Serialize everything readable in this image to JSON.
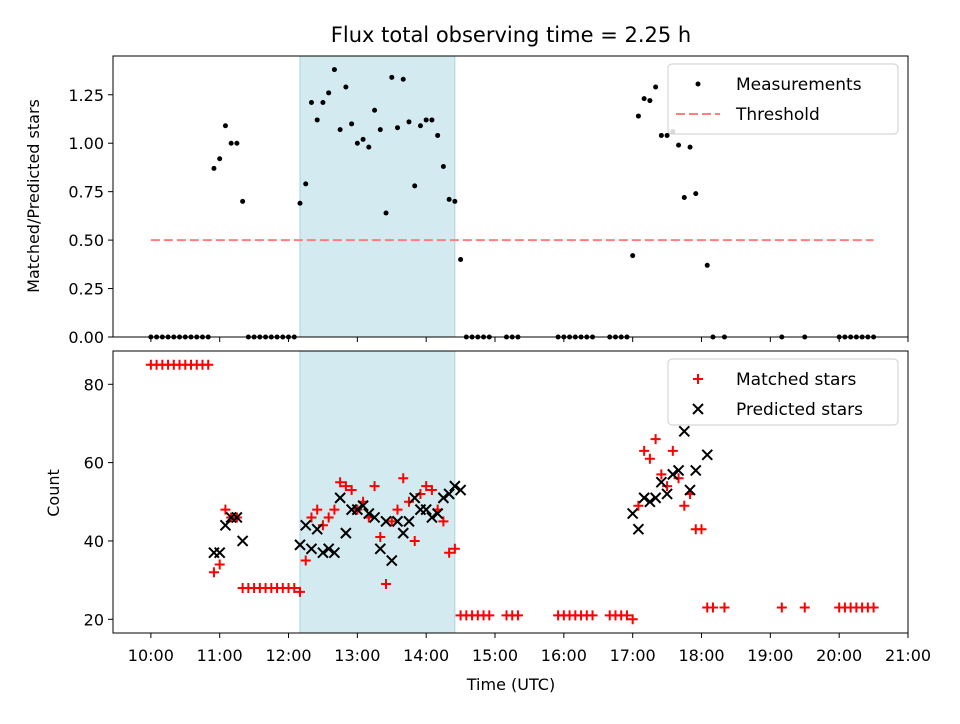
{
  "chart_data": [
    {
      "type": "scatter",
      "title": "Flux total observing time = 2.25 h",
      "ylabel": "Matched/Predicted stars",
      "xlabel": "",
      "xlim": [
        "09:27",
        "21:00"
      ],
      "ylim": [
        0,
        1.45
      ],
      "y_ticks": [
        "0.00",
        "0.25",
        "0.50",
        "0.75",
        "1.00",
        "1.25"
      ],
      "highlight_span": [
        "12:10",
        "14:25"
      ],
      "highlight_color": "#d3eaf0",
      "legend_position": "upper right",
      "series": [
        {
          "name": "Measurements",
          "marker": "dot",
          "color": "#000000",
          "points": [
            [
              "10:00",
              0
            ],
            [
              "10:05",
              0
            ],
            [
              "10:10",
              0
            ],
            [
              "10:15",
              0
            ],
            [
              "10:20",
              0
            ],
            [
              "10:25",
              0
            ],
            [
              "10:30",
              0
            ],
            [
              "10:35",
              0
            ],
            [
              "10:40",
              0
            ],
            [
              "10:45",
              0
            ],
            [
              "10:50",
              0
            ],
            [
              "10:55",
              0.87
            ],
            [
              "11:00",
              0.92
            ],
            [
              "11:05",
              1.09
            ],
            [
              "11:10",
              1.0
            ],
            [
              "11:15",
              1.0
            ],
            [
              "11:20",
              0.7
            ],
            [
              "11:25",
              0
            ],
            [
              "11:30",
              0
            ],
            [
              "11:35",
              0
            ],
            [
              "11:40",
              0
            ],
            [
              "11:45",
              0
            ],
            [
              "11:50",
              0
            ],
            [
              "11:55",
              0
            ],
            [
              "12:00",
              0
            ],
            [
              "12:05",
              0
            ],
            [
              "12:10",
              0.69
            ],
            [
              "12:15",
              0.79
            ],
            [
              "12:20",
              1.21
            ],
            [
              "12:25",
              1.12
            ],
            [
              "12:30",
              1.21
            ],
            [
              "12:35",
              1.26
            ],
            [
              "12:40",
              1.38
            ],
            [
              "12:45",
              1.07
            ],
            [
              "12:50",
              1.29
            ],
            [
              "12:55",
              1.1
            ],
            [
              "13:00",
              1.0
            ],
            [
              "13:05",
              1.02
            ],
            [
              "13:10",
              0.98
            ],
            [
              "13:15",
              1.17
            ],
            [
              "13:20",
              1.07
            ],
            [
              "13:25",
              0.64
            ],
            [
              "13:30",
              1.34
            ],
            [
              "13:35",
              1.08
            ],
            [
              "13:40",
              1.33
            ],
            [
              "13:45",
              1.11
            ],
            [
              "13:50",
              0.78
            ],
            [
              "13:55",
              1.09
            ],
            [
              "14:00",
              1.12
            ],
            [
              "14:05",
              1.12
            ],
            [
              "14:10",
              1.04
            ],
            [
              "14:15",
              0.88
            ],
            [
              "14:20",
              0.71
            ],
            [
              "14:25",
              0.7
            ],
            [
              "14:30",
              0.4
            ],
            [
              "14:35",
              0
            ],
            [
              "14:40",
              0
            ],
            [
              "14:45",
              0
            ],
            [
              "14:50",
              0
            ],
            [
              "14:55",
              0
            ],
            [
              "15:10",
              0
            ],
            [
              "15:15",
              0
            ],
            [
              "15:20",
              0
            ],
            [
              "15:55",
              0
            ],
            [
              "16:00",
              0
            ],
            [
              "16:05",
              0
            ],
            [
              "16:10",
              0
            ],
            [
              "16:15",
              0
            ],
            [
              "16:20",
              0
            ],
            [
              "16:25",
              0
            ],
            [
              "16:40",
              0
            ],
            [
              "16:45",
              0
            ],
            [
              "16:50",
              0
            ],
            [
              "16:55",
              0
            ],
            [
              "17:00",
              0.42
            ],
            [
              "17:05",
              1.14
            ],
            [
              "17:10",
              1.23
            ],
            [
              "17:15",
              1.22
            ],
            [
              "17:20",
              1.29
            ],
            [
              "17:25",
              1.04
            ],
            [
              "17:30",
              1.04
            ],
            [
              "17:35",
              1.06
            ],
            [
              "17:40",
              0.99
            ],
            [
              "17:45",
              0.72
            ],
            [
              "17:50",
              0.98
            ],
            [
              "17:55",
              0.74
            ],
            [
              "18:05",
              0.37
            ],
            [
              "18:10",
              0
            ],
            [
              "18:20",
              0
            ],
            [
              "19:10",
              0
            ],
            [
              "19:30",
              0
            ],
            [
              "20:00",
              0
            ],
            [
              "20:05",
              0
            ],
            [
              "20:10",
              0
            ],
            [
              "20:15",
              0
            ],
            [
              "20:20",
              0
            ],
            [
              "20:25",
              0
            ],
            [
              "20:30",
              0
            ]
          ]
        },
        {
          "name": "Threshold",
          "marker": "dashed-line",
          "color": "#ff7f7f",
          "points": [
            [
              "10:00",
              0.5
            ],
            [
              "20:30",
              0.5
            ]
          ]
        }
      ]
    },
    {
      "type": "scatter",
      "title": "",
      "ylabel": "Count",
      "xlabel": "Time (UTC)",
      "xlim": [
        "09:27",
        "21:00"
      ],
      "ylim": [
        16.5,
        88.5
      ],
      "x_ticks": [
        "10:00",
        "11:00",
        "12:00",
        "13:00",
        "14:00",
        "15:00",
        "16:00",
        "17:00",
        "18:00",
        "19:00",
        "20:00",
        "21:00"
      ],
      "y_ticks": [
        "20",
        "40",
        "60",
        "80"
      ],
      "highlight_span": [
        "12:10",
        "14:25"
      ],
      "highlight_color": "#d3eaf0",
      "legend_position": "upper right",
      "series": [
        {
          "name": "Matched stars",
          "marker": "plus",
          "color": "#ff0000",
          "points": [
            [
              "10:00",
              85
            ],
            [
              "10:05",
              85
            ],
            [
              "10:10",
              85
            ],
            [
              "10:15",
              85
            ],
            [
              "10:20",
              85
            ],
            [
              "10:25",
              85
            ],
            [
              "10:30",
              85
            ],
            [
              "10:35",
              85
            ],
            [
              "10:40",
              85
            ],
            [
              "10:45",
              85
            ],
            [
              "10:50",
              85
            ],
            [
              "10:55",
              32
            ],
            [
              "11:00",
              34
            ],
            [
              "11:05",
              48
            ],
            [
              "11:10",
              46
            ],
            [
              "11:15",
              46
            ],
            [
              "11:20",
              28
            ],
            [
              "11:25",
              28
            ],
            [
              "11:30",
              28
            ],
            [
              "11:35",
              28
            ],
            [
              "11:40",
              28
            ],
            [
              "11:45",
              28
            ],
            [
              "11:50",
              28
            ],
            [
              "11:55",
              28
            ],
            [
              "12:00",
              28
            ],
            [
              "12:05",
              28
            ],
            [
              "12:10",
              27
            ],
            [
              "12:15",
              35
            ],
            [
              "12:20",
              46
            ],
            [
              "12:25",
              48
            ],
            [
              "12:30",
              44
            ],
            [
              "12:35",
              46
            ],
            [
              "12:40",
              48
            ],
            [
              "12:45",
              55
            ],
            [
              "12:50",
              54
            ],
            [
              "12:55",
              53
            ],
            [
              "13:00",
              48
            ],
            [
              "13:05",
              50
            ],
            [
              "13:10",
              46
            ],
            [
              "13:15",
              54
            ],
            [
              "13:20",
              41
            ],
            [
              "13:25",
              29
            ],
            [
              "13:30",
              45
            ],
            [
              "13:35",
              48
            ],
            [
              "13:40",
              56
            ],
            [
              "13:45",
              50
            ],
            [
              "13:50",
              40
            ],
            [
              "13:55",
              52
            ],
            [
              "14:00",
              54
            ],
            [
              "14:05",
              53
            ],
            [
              "14:10",
              48
            ],
            [
              "14:15",
              45
            ],
            [
              "14:20",
              37
            ],
            [
              "14:25",
              38
            ],
            [
              "14:30",
              21
            ],
            [
              "14:35",
              21
            ],
            [
              "14:40",
              21
            ],
            [
              "14:45",
              21
            ],
            [
              "14:50",
              21
            ],
            [
              "14:55",
              21
            ],
            [
              "15:10",
              21
            ],
            [
              "15:15",
              21
            ],
            [
              "15:20",
              21
            ],
            [
              "15:55",
              21
            ],
            [
              "16:00",
              21
            ],
            [
              "16:05",
              21
            ],
            [
              "16:10",
              21
            ],
            [
              "16:15",
              21
            ],
            [
              "16:20",
              21
            ],
            [
              "16:25",
              21
            ],
            [
              "16:40",
              21
            ],
            [
              "16:45",
              21
            ],
            [
              "16:50",
              21
            ],
            [
              "16:55",
              21
            ],
            [
              "17:00",
              20
            ],
            [
              "17:05",
              49
            ],
            [
              "17:10",
              63
            ],
            [
              "17:15",
              61
            ],
            [
              "17:20",
              66
            ],
            [
              "17:25",
              57
            ],
            [
              "17:30",
              54
            ],
            [
              "17:35",
              63
            ],
            [
              "17:40",
              56
            ],
            [
              "17:45",
              49
            ],
            [
              "17:50",
              52
            ],
            [
              "17:55",
              43
            ],
            [
              "18:00",
              43
            ],
            [
              "18:05",
              23
            ],
            [
              "18:10",
              23
            ],
            [
              "18:20",
              23
            ],
            [
              "19:10",
              23
            ],
            [
              "19:30",
              23
            ],
            [
              "20:00",
              23
            ],
            [
              "20:05",
              23
            ],
            [
              "20:10",
              23
            ],
            [
              "20:15",
              23
            ],
            [
              "20:20",
              23
            ],
            [
              "20:25",
              23
            ],
            [
              "20:30",
              23
            ]
          ]
        },
        {
          "name": "Predicted stars",
          "marker": "x",
          "color": "#000000",
          "points": [
            [
              "10:55",
              37
            ],
            [
              "11:00",
              37
            ],
            [
              "11:05",
              44
            ],
            [
              "11:10",
              46
            ],
            [
              "11:15",
              46
            ],
            [
              "11:20",
              40
            ],
            [
              "12:10",
              39
            ],
            [
              "12:15",
              44
            ],
            [
              "12:20",
              38
            ],
            [
              "12:25",
              43
            ],
            [
              "12:30",
              37
            ],
            [
              "12:35",
              38
            ],
            [
              "12:40",
              37
            ],
            [
              "12:45",
              51
            ],
            [
              "12:50",
              42
            ],
            [
              "12:55",
              48
            ],
            [
              "13:00",
              48
            ],
            [
              "13:05",
              49
            ],
            [
              "13:10",
              47
            ],
            [
              "13:15",
              46
            ],
            [
              "13:20",
              38
            ],
            [
              "13:25",
              45
            ],
            [
              "13:30",
              35
            ],
            [
              "13:35",
              45
            ],
            [
              "13:40",
              42
            ],
            [
              "13:45",
              45
            ],
            [
              "13:50",
              51
            ],
            [
              "13:55",
              48
            ],
            [
              "14:00",
              48
            ],
            [
              "14:05",
              46
            ],
            [
              "14:10",
              47
            ],
            [
              "14:15",
              51
            ],
            [
              "14:20",
              52
            ],
            [
              "14:25",
              54
            ],
            [
              "14:30",
              53
            ],
            [
              "17:00",
              47
            ],
            [
              "17:05",
              43
            ],
            [
              "17:10",
              51
            ],
            [
              "17:15",
              50
            ],
            [
              "17:20",
              51
            ],
            [
              "17:25",
              55
            ],
            [
              "17:30",
              52
            ],
            [
              "17:35",
              57
            ],
            [
              "17:40",
              58
            ],
            [
              "17:45",
              68
            ],
            [
              "17:50",
              53
            ],
            [
              "17:55",
              58
            ],
            [
              "18:05",
              62
            ]
          ]
        }
      ]
    }
  ]
}
